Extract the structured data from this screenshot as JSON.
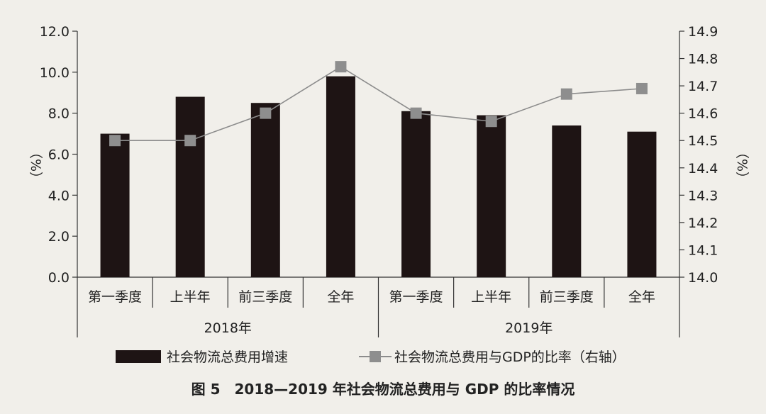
{
  "chart_data": {
    "type": "bar+line",
    "caption": "图 5　2018—2019 年社会物流总费用与 GDP 的比率情况",
    "group_labels": [
      "2018年",
      "2019年"
    ],
    "categories": [
      "第一季度",
      "上半年",
      "前三季度",
      "全年",
      "第一季度",
      "上半年",
      "前三季度",
      "全年"
    ],
    "series": [
      {
        "name": "社会物流总费用增速",
        "type": "bar",
        "axis": "left",
        "color": "#1e1414",
        "values": [
          7.0,
          8.8,
          8.5,
          9.8,
          8.1,
          7.9,
          7.4,
          7.1
        ]
      },
      {
        "name": "社会物流总费用与GDP的比率（右轴）",
        "type": "line",
        "axis": "right",
        "color": "#8c8c8c",
        "marker_color": "#8e8e8e",
        "values": [
          14.5,
          14.5,
          14.6,
          14.77,
          14.6,
          14.57,
          14.67,
          14.69
        ]
      }
    ],
    "left_axis": {
      "min": 0,
      "max": 12,
      "step": 2,
      "unit_label": "（%）",
      "tick_labels": [
        "0.0",
        "2.0",
        "4.0",
        "6.0",
        "8.0",
        "10.0",
        "12.0"
      ]
    },
    "right_axis": {
      "min": 14.0,
      "max": 14.9,
      "step": 0.1,
      "unit_label": "（%）",
      "tick_labels": [
        "14.0",
        "14.1",
        "14.2",
        "14.3",
        "14.4",
        "14.5",
        "14.6",
        "14.7",
        "14.8",
        "14.9"
      ]
    },
    "legend": [
      "社会物流总费用增速",
      "社会物流总费用与GDP的比率（右轴）"
    ]
  }
}
